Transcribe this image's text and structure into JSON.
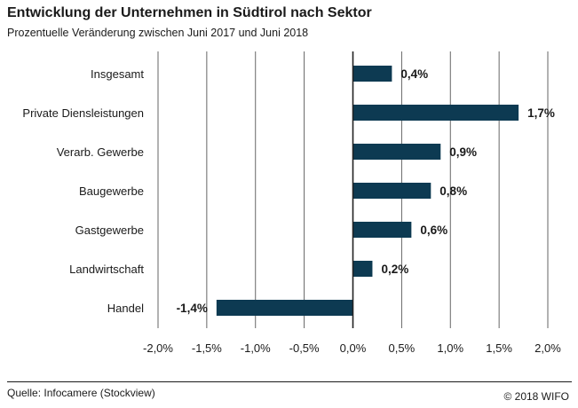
{
  "title": "Entwicklung der Unternehmen in Südtirol nach Sektor",
  "subtitle": "Prozentuelle Veränderung zwischen Juni 2017 und Juni 2018",
  "source": "Quelle: Infocamere (Stockview)",
  "copyright": "© 2018 WIFO",
  "colors": {
    "bar": "#0d3a52",
    "grid": "#555555",
    "axis": "#222222"
  },
  "chart_data": {
    "type": "bar",
    "orientation": "horizontal",
    "title": "Entwicklung der Unternehmen in Südtirol nach Sektor",
    "subtitle": "Prozentuelle Veränderung zwischen Juni 2017 und Juni 2018",
    "categories": [
      "Insgesamt",
      "Private Diensleistungen",
      "Verarb. Gewerbe",
      "Baugewerbe",
      "Gastgewerbe",
      "Landwirtschaft",
      "Handel"
    ],
    "values": [
      0.4,
      1.7,
      0.9,
      0.8,
      0.6,
      0.2,
      -1.4
    ],
    "value_labels": [
      "0,4%",
      "1,7%",
      "0,9%",
      "0,8%",
      "0,6%",
      "0,2%",
      "-1,4%"
    ],
    "xlim": [
      -2.0,
      2.0
    ],
    "xticks": [
      -2.0,
      -1.5,
      -1.0,
      -0.5,
      0.0,
      0.5,
      1.0,
      1.5,
      2.0
    ],
    "xtick_labels": [
      "-2,0%",
      "-1,5%",
      "-1,0%",
      "-0,5%",
      "0,0%",
      "0,5%",
      "1,0%",
      "1,5%",
      "2,0%"
    ],
    "grid": true,
    "legend": false
  }
}
